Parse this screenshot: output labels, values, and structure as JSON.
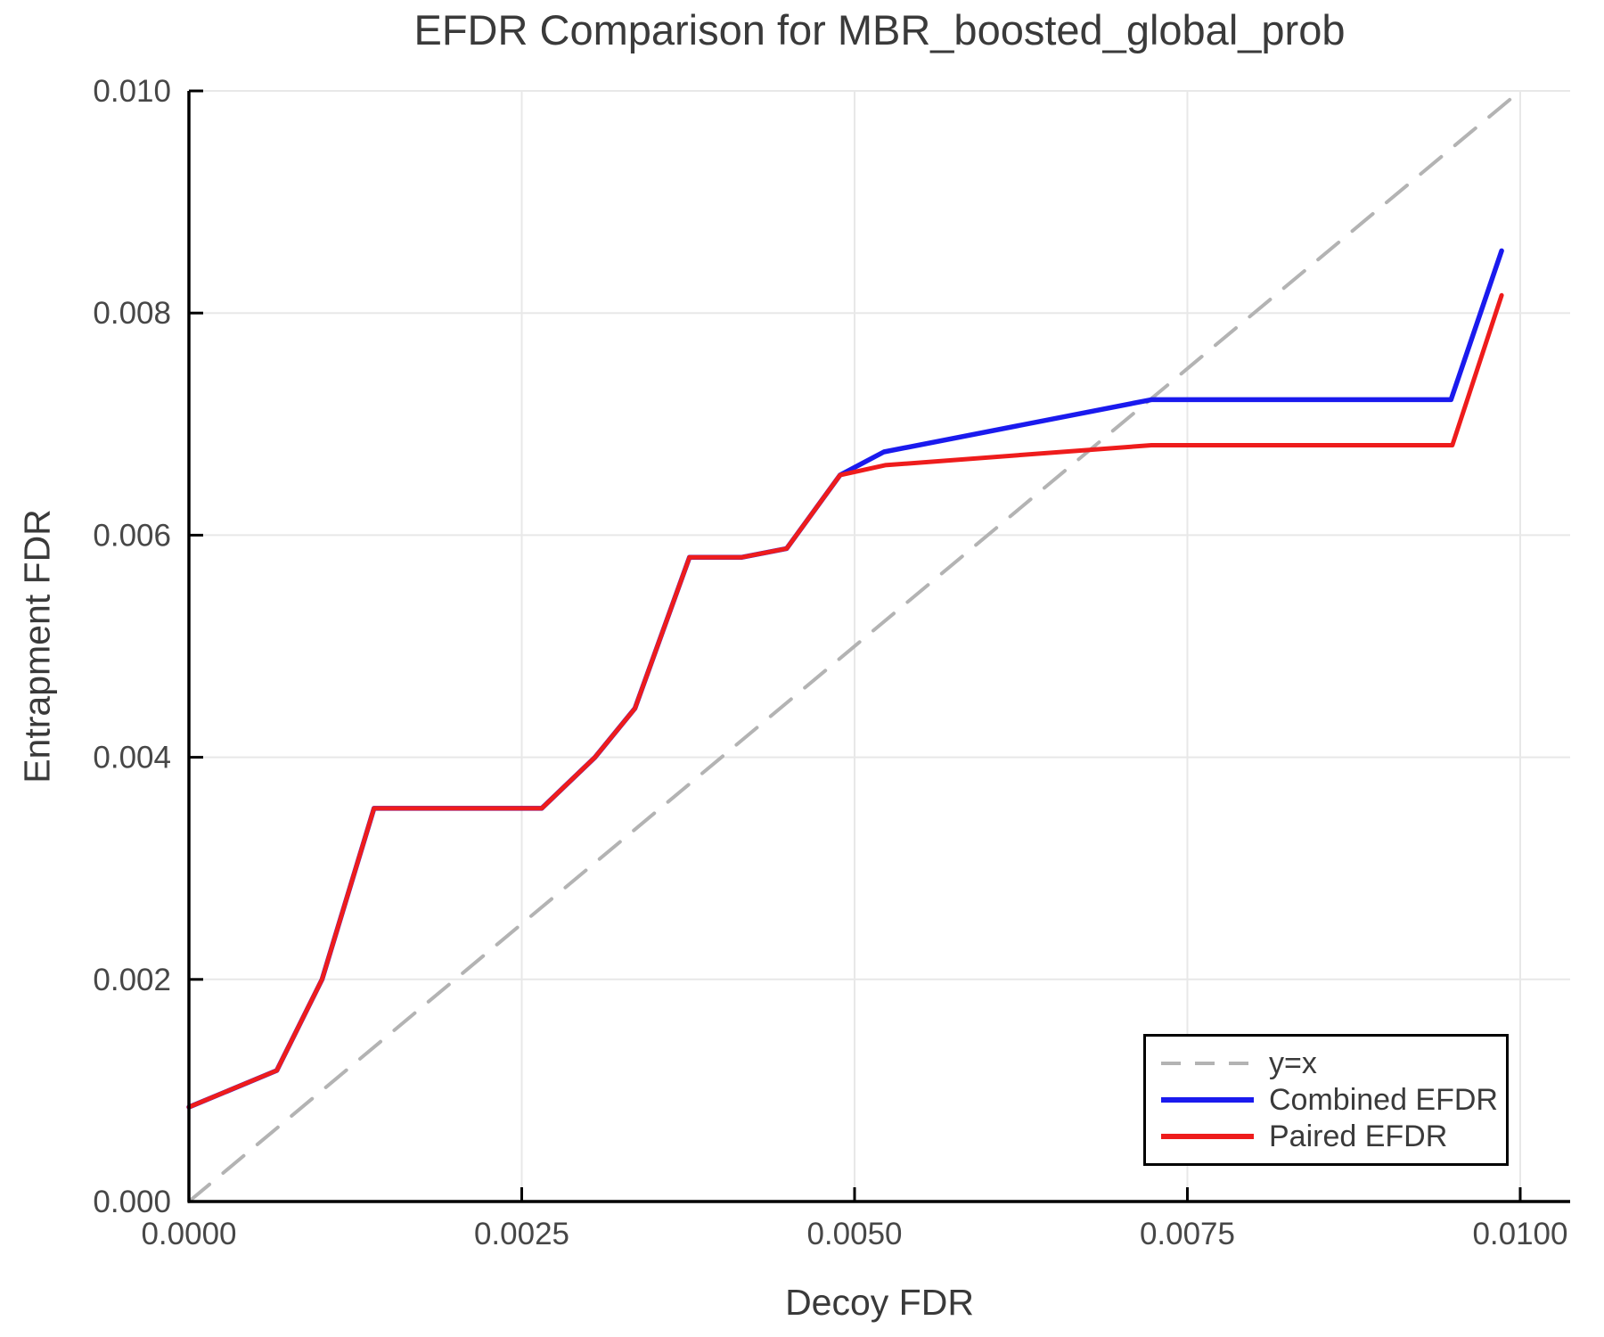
{
  "chart_data": {
    "type": "line",
    "title": "EFDR Comparison for MBR_boosted_global_prob",
    "xlabel": "Decoy FDR",
    "ylabel": "Entrapment FDR",
    "xlim": [
      0.0,
      0.010375
    ],
    "ylim": [
      0.0,
      0.01
    ],
    "grid": true,
    "legend_position": "bottom-right",
    "xticks": {
      "values": [
        0.0,
        0.0025,
        0.005,
        0.0075,
        0.01
      ],
      "labels": [
        "0.0000",
        "0.0025",
        "0.0050",
        "0.0075",
        "0.0100"
      ]
    },
    "yticks": {
      "values": [
        0.0,
        0.002,
        0.004,
        0.006,
        0.008,
        0.01
      ],
      "labels": [
        "0.000",
        "0.002",
        "0.004",
        "0.006",
        "0.008",
        "0.010"
      ]
    },
    "series": [
      {
        "name": "y=x",
        "style": "dashed",
        "color": "#b3b3b3",
        "width": 4,
        "points": [
          [
            0.0,
            0.0
          ],
          [
            0.01,
            0.01
          ]
        ]
      },
      {
        "name": "Combined EFDR",
        "style": "solid",
        "color": "#1a1aee",
        "width": 5.5,
        "points": [
          [
            0.0,
            0.00085
          ],
          [
            0.00066,
            0.00118
          ],
          [
            0.001,
            0.002
          ],
          [
            0.00139,
            0.00354
          ],
          [
            0.00265,
            0.00354
          ],
          [
            0.00305,
            0.004
          ],
          [
            0.00335,
            0.00444
          ],
          [
            0.00376,
            0.0058
          ],
          [
            0.00415,
            0.0058
          ],
          [
            0.00449,
            0.00588
          ],
          [
            0.00489,
            0.00654
          ],
          [
            0.00522,
            0.00675
          ],
          [
            0.00723,
            0.00722
          ],
          [
            0.00948,
            0.00722
          ],
          [
            0.00986,
            0.00856
          ]
        ]
      },
      {
        "name": "Paired EFDR",
        "style": "solid",
        "color": "#ee1c1c",
        "width": 5,
        "points": [
          [
            0.0,
            0.00085
          ],
          [
            0.00066,
            0.00118
          ],
          [
            0.001,
            0.002
          ],
          [
            0.00139,
            0.00354
          ],
          [
            0.00265,
            0.00354
          ],
          [
            0.00305,
            0.004
          ],
          [
            0.00335,
            0.00444
          ],
          [
            0.00376,
            0.0058
          ],
          [
            0.00415,
            0.0058
          ],
          [
            0.00449,
            0.00588
          ],
          [
            0.00489,
            0.00654
          ],
          [
            0.00523,
            0.00663
          ],
          [
            0.00723,
            0.00681
          ],
          [
            0.00949,
            0.00681
          ],
          [
            0.00986,
            0.00816
          ]
        ]
      }
    ],
    "colors": {
      "background": "#ffffff",
      "grid": "#e8e8e8",
      "spine": "#000000",
      "text": "#3a3a3a",
      "tick_text": "#474747"
    }
  }
}
